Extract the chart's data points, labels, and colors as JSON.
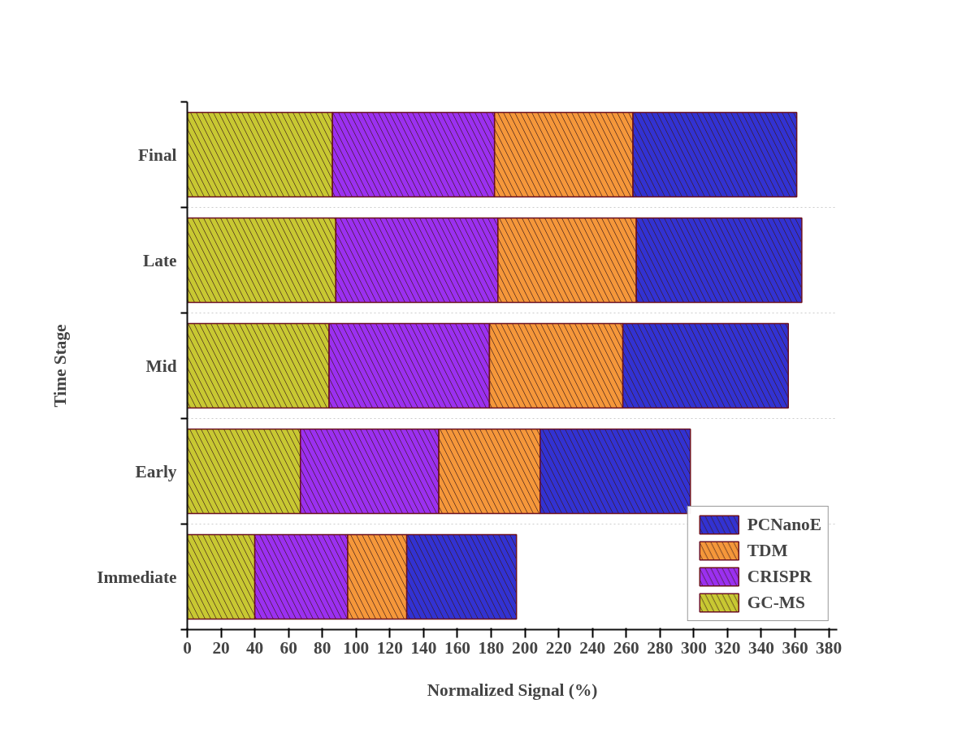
{
  "chart_data": {
    "type": "bar",
    "orientation": "horizontal",
    "stacked": true,
    "xlabel": "Normalized Signal (%)",
    "ylabel": "Time Stage",
    "categories": [
      "Final",
      "Late",
      "Mid",
      "Early",
      "Immediate"
    ],
    "series": [
      {
        "name": "GC-MS",
        "color": "#c8c832",
        "values": [
          86,
          88,
          84,
          67,
          40
        ]
      },
      {
        "name": "CRISPR",
        "color": "#9b30f0",
        "values": [
          96,
          96,
          95,
          82,
          55
        ]
      },
      {
        "name": "TDM",
        "color": "#f5973a",
        "values": [
          82,
          82,
          79,
          60,
          35
        ]
      },
      {
        "name": "PCNanoE",
        "color": "#3232d2",
        "values": [
          97,
          98,
          98,
          89,
          65
        ]
      }
    ],
    "xlim": [
      0,
      385
    ],
    "xticks": [
      0,
      20,
      40,
      60,
      80,
      100,
      120,
      140,
      160,
      180,
      200,
      220,
      240,
      260,
      280,
      300,
      320,
      340,
      360,
      380
    ],
    "grid": "y",
    "legend": "bottom right"
  }
}
